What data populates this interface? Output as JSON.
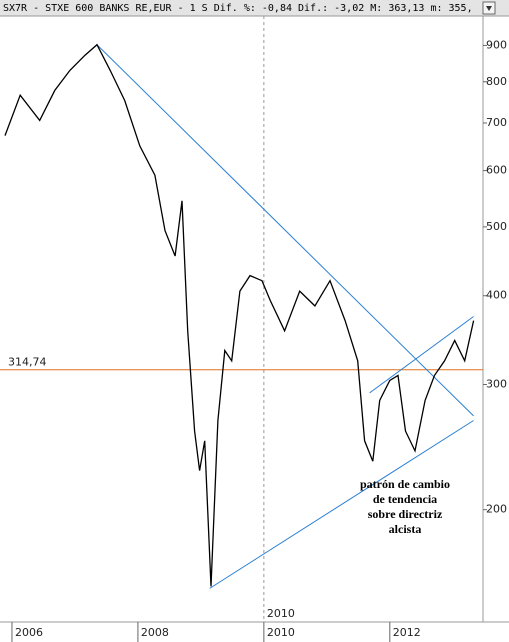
{
  "chart_data": {
    "type": "line",
    "title": "SX7R - STXE 600 BANKS RE,EUR - 1 S Dif. %: -0,84 Dif.: -3,02 M: 363,13 m: 355,",
    "log_scale": true,
    "xlim": [
      2005.81,
      2013.48
    ],
    "xticks": [
      2006,
      2008,
      2010,
      2012
    ],
    "ylim": [
      139,
      990
    ],
    "yticks": [
      200,
      300,
      400,
      500,
      600,
      700,
      800,
      900
    ],
    "x": [
      2005.89,
      2006.13,
      2006.44,
      2006.68,
      2006.92,
      2007.16,
      2007.35,
      2007.56,
      2007.79,
      2008.03,
      2008.27,
      2008.43,
      2008.59,
      2008.7,
      2008.79,
      2008.9,
      2008.98,
      2009.06,
      2009.16,
      2009.27,
      2009.38,
      2009.49,
      2009.62,
      2009.78,
      2009.97,
      2010.1,
      2010.33,
      2010.57,
      2010.81,
      2011.05,
      2011.29,
      2011.49,
      2011.6,
      2011.73,
      2011.84,
      2012.0,
      2012.13,
      2012.25,
      2012.4,
      2012.56,
      2012.71,
      2012.87,
      2013.03,
      2013.19,
      2013.33
    ],
    "series": [
      {
        "color": "#000000",
        "values": [
          672,
          766,
          706,
          778,
          830,
          872,
          902,
          830,
          753,
          650,
          591,
          494,
          455,
          544,
          357,
          258,
          227,
          250,
          156,
          267,
          335,
          324,
          406,
          427,
          420,
          394,
          357,
          406,
          387,
          420,
          369,
          324,
          250,
          234,
          285,
          304,
          309,
          258,
          242,
          285,
          309,
          324,
          346,
          324,
          369
        ]
      }
    ],
    "hline": {
      "value": 314.74,
      "label": "314,74",
      "color": "#e07020"
    },
    "trendlines": [
      {
        "x": [
          2007.35,
          2013.33
        ],
        "values": [
          902,
          271
        ],
        "color": "#2a7fd4"
      },
      {
        "x": [
          2009.14,
          2013.33
        ],
        "values": [
          155,
          267
        ],
        "color": "#2a7fd4"
      },
      {
        "x": [
          2011.68,
          2013.33
        ],
        "values": [
          292,
          374
        ],
        "color": "#2a7fd4"
      }
    ],
    "annotation": [
      "patrón de cambio",
      "de tendencia",
      "sobre directriz",
      "alcista"
    ]
  }
}
